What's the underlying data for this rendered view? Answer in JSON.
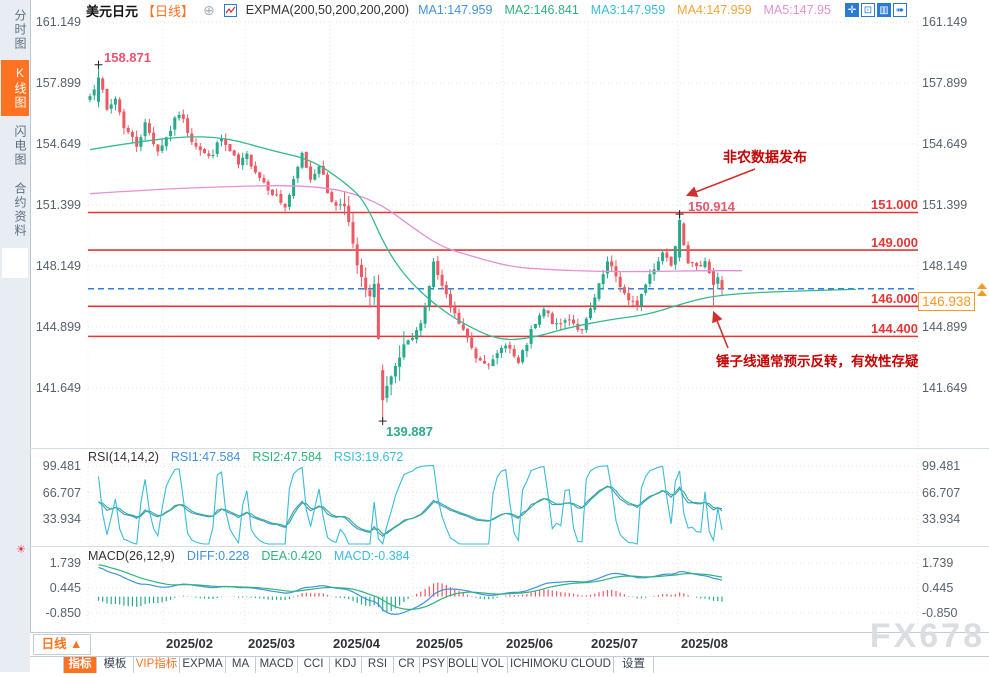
{
  "header": {
    "symbol": "美元日元",
    "period_tag": "【日线】",
    "add_icon": "⊕",
    "indicator_label": "EXPMA(200,50,200,200,200)",
    "ma_values": [
      {
        "label": "MA1:147.959",
        "color": "#4191e0"
      },
      {
        "label": "MA2:146.841",
        "color": "#2eb47c"
      },
      {
        "label": "MA3:147.959",
        "color": "#38bcd9"
      },
      {
        "label": "MA4:147.959",
        "color": "#f0a43c"
      },
      {
        "label": "MA5:147.95",
        "color": "#e78fd4"
      }
    ],
    "window_icons": [
      {
        "name": "crosshair-icon",
        "glyph": "✛",
        "filled": true
      },
      {
        "name": "fit-scale-icon",
        "glyph": "⊡",
        "filled": false
      },
      {
        "name": "chart-layout-icon",
        "glyph": "▥",
        "filled": true
      },
      {
        "name": "export-chart-icon",
        "glyph": "➠",
        "filled": false
      }
    ]
  },
  "sidebar": {
    "tabs": [
      {
        "label": "分时图",
        "active": false
      },
      {
        "label": "K线图",
        "active": true
      },
      {
        "label": "闪电图",
        "active": false
      },
      {
        "label": "合约资料",
        "active": false
      }
    ]
  },
  "icons": {
    "alert": "☀"
  },
  "chart_data": {
    "type": "candlestick",
    "title": "美元日元 日线 (USD/JPY Daily)",
    "y_axis_ticks": [
      "161.149",
      "157.899",
      "154.649",
      "151.399",
      "148.149",
      "144.899",
      "141.649"
    ],
    "x_axis_labels": [
      "2025/02",
      "2025/03",
      "2025/04",
      "2025/05",
      "2025/06",
      "2025/07",
      "2025/08"
    ],
    "horizontal_levels": [
      "151.000",
      "149.000",
      "146.000",
      "144.400"
    ],
    "level_color": "#e53535",
    "current_price": "146.938",
    "current_price_line_color": "#2f7fe8",
    "marked_high": "158.871",
    "marked_low": "139.887",
    "swing_high": "150.914",
    "candle_up_color": "#27a98b",
    "candle_down_color": "#ef5862",
    "close_anchors": [
      [
        0,
        157.2
      ],
      [
        2,
        158.3
      ],
      [
        4,
        156.4
      ],
      [
        6,
        157.1
      ],
      [
        8,
        155.6
      ],
      [
        11,
        154.6
      ],
      [
        13,
        155.7
      ],
      [
        16,
        154.3
      ],
      [
        18,
        155.0
      ],
      [
        21,
        156.3
      ],
      [
        24,
        154.9
      ],
      [
        28,
        153.9
      ],
      [
        31,
        154.9
      ],
      [
        35,
        153.5
      ],
      [
        37,
        154.0
      ],
      [
        40,
        152.9
      ],
      [
        43,
        152.1
      ],
      [
        46,
        151.3
      ],
      [
        48,
        152.6
      ],
      [
        50,
        154.1
      ],
      [
        52,
        152.8
      ],
      [
        54,
        153.6
      ],
      [
        56,
        152.1
      ],
      [
        58,
        151.3
      ],
      [
        60,
        151.7
      ],
      [
        62,
        149.0
      ],
      [
        64,
        147.3
      ],
      [
        66,
        146.2
      ],
      [
        67,
        147.5
      ],
      [
        69,
        141.0
      ],
      [
        71,
        141.9
      ],
      [
        73,
        143.2
      ],
      [
        75,
        144.0
      ],
      [
        77,
        144.6
      ],
      [
        79,
        146.0
      ],
      [
        81,
        148.3
      ],
      [
        83,
        147.0
      ],
      [
        85,
        145.9
      ],
      [
        88,
        144.7
      ],
      [
        91,
        143.3
      ],
      [
        95,
        143.0
      ],
      [
        98,
        144.1
      ],
      [
        101,
        142.9
      ],
      [
        104,
        144.6
      ],
      [
        107,
        145.8
      ],
      [
        110,
        144.9
      ],
      [
        113,
        145.4
      ],
      [
        116,
        144.6
      ],
      [
        119,
        146.4
      ],
      [
        122,
        148.3
      ],
      [
        124,
        147.6
      ],
      [
        127,
        146.2
      ],
      [
        129,
        146.1
      ],
      [
        132,
        147.7
      ],
      [
        135,
        148.9
      ],
      [
        137,
        148.3
      ],
      [
        139,
        150.5
      ],
      [
        141,
        148.4
      ],
      [
        143,
        148.0
      ],
      [
        145,
        148.5
      ],
      [
        147,
        147.1
      ],
      [
        149,
        146.938
      ]
    ],
    "ma_fast_line": {
      "color": "#35b98e",
      "points": [
        [
          90,
          154.35
        ],
        [
          130,
          154.7
        ],
        [
          180,
          155.05
        ],
        [
          225,
          155.0
        ],
        [
          272,
          154.3
        ],
        [
          312,
          153.8
        ],
        [
          345,
          152.6
        ],
        [
          365,
          151.6
        ],
        [
          385,
          149.2
        ],
        [
          405,
          147.6
        ],
        [
          430,
          146.3
        ],
        [
          460,
          145.15
        ],
        [
          500,
          144.15
        ],
        [
          535,
          144.35
        ],
        [
          567,
          144.85
        ],
        [
          610,
          145.3
        ],
        [
          647,
          145.55
        ],
        [
          680,
          146.1
        ],
        [
          707,
          146.5
        ],
        [
          742,
          146.7
        ],
        [
          800,
          146.82
        ],
        [
          856,
          146.9
        ]
      ]
    },
    "ma_slow_line": {
      "color": "#e78fd4",
      "points": [
        [
          90,
          152.0
        ],
        [
          160,
          152.25
        ],
        [
          240,
          152.4
        ],
        [
          290,
          152.45
        ],
        [
          330,
          152.3
        ],
        [
          360,
          151.9
        ],
        [
          385,
          151.3
        ],
        [
          410,
          150.3
        ],
        [
          440,
          149.2
        ],
        [
          470,
          148.7
        ],
        [
          510,
          148.1
        ],
        [
          550,
          147.95
        ],
        [
          600,
          147.85
        ],
        [
          650,
          147.85
        ],
        [
          700,
          147.9
        ],
        [
          742,
          147.9
        ]
      ]
    },
    "rsi": {
      "title": "RSI(14,14,2)",
      "readings": [
        {
          "label": "RSI1:47.584",
          "color": "#4191e0"
        },
        {
          "label": "RSI2:47.584",
          "color": "#2eb47c"
        },
        {
          "label": "RSI3:19.672",
          "color": "#38bcd9"
        }
      ],
      "ticks": [
        "99.481",
        "66.707",
        "33.934"
      ]
    },
    "macd": {
      "title": "MACD(26,12,9)",
      "readings": [
        {
          "label": "DIFF:0.228",
          "color": "#4191e0"
        },
        {
          "label": "DEA:0.420",
          "color": "#2eb47c"
        },
        {
          "label": "MACD:-0.384",
          "color": "#38bcd9"
        }
      ],
      "ticks": [
        "1.739",
        "0.445",
        "-0.850"
      ]
    },
    "annotations": {
      "nfp": {
        "text": "非农数据发布"
      },
      "hammer": {
        "text": "锤子线通常预示反转，有效性存疑"
      }
    }
  },
  "x_axis": {
    "period_selector": "日线 ▲",
    "dates": [
      "2025/02",
      "2025/03",
      "2025/04",
      "2025/05",
      "2025/06",
      "2025/07",
      "2025/08"
    ]
  },
  "bottom_toolbar": {
    "items": [
      {
        "label": "指标",
        "style": "active"
      },
      {
        "label": "模板",
        "style": ""
      },
      {
        "label": "VIP指标",
        "style": "vip"
      },
      {
        "label": "EXPMA",
        "style": ""
      },
      {
        "label": "MA",
        "style": ""
      },
      {
        "label": "MACD",
        "style": ""
      },
      {
        "label": "CCI",
        "style": ""
      },
      {
        "label": "KDJ",
        "style": ""
      },
      {
        "label": "RSI",
        "style": ""
      },
      {
        "label": "CR",
        "style": ""
      },
      {
        "label": "PSY",
        "style": ""
      },
      {
        "label": "BOLL",
        "style": ""
      },
      {
        "label": "VOL",
        "style": ""
      },
      {
        "label": "ICHIMOKU CLOUD",
        "style": ""
      },
      {
        "label": "设置",
        "style": ""
      }
    ]
  },
  "watermark": "FX678"
}
